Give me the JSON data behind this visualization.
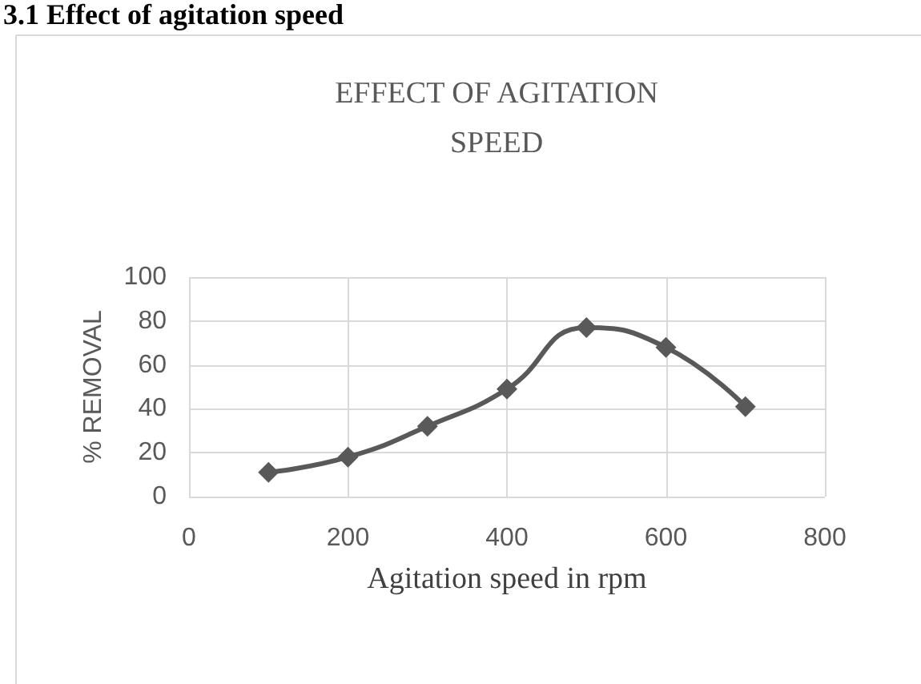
{
  "chart_data": {
    "type": "line",
    "title": "EFFECT OF AGITATION\nSPEED",
    "xlabel": "Agitation speed in rpm",
    "ylabel": "% REMOVAL",
    "annotations": [
      "3.1 Effect of agitation speed"
    ],
    "x": [
      100,
      200,
      300,
      400,
      500,
      600,
      700
    ],
    "series": [
      {
        "color": "#595959",
        "values": [
          11,
          18,
          32,
          49,
          77,
          68,
          41
        ]
      }
    ],
    "xlim": [
      0,
      800
    ],
    "xticks": [
      0,
      200,
      400,
      600,
      800
    ],
    "ylim": [
      0,
      100
    ],
    "yticks": [
      0,
      20,
      40,
      60,
      80,
      100
    ],
    "grid": true,
    "marker": "diamond",
    "line_style": "solid"
  }
}
